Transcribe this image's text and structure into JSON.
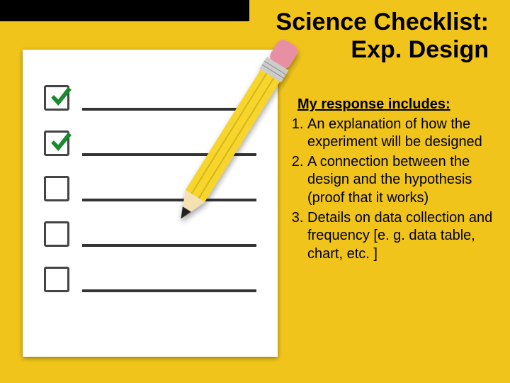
{
  "colors": {
    "background": "#f0c41b",
    "header_black": "#000000",
    "header_black_width": 352,
    "paper": "#ffffff",
    "line": "#333333",
    "checkbox_border": "#444444",
    "checkmark": "#178a2e",
    "pencil_body": "#f7d52a",
    "pencil_eraser": "#e98fa3",
    "pencil_ferrule": "#cccccc",
    "pencil_tip_wood": "#f4e0b0",
    "pencil_tip_lead": "#222222",
    "text": "#000000"
  },
  "title_line1": "Science Checklist:",
  "title_line2": "Exp. Design",
  "checklist": {
    "rows": [
      {
        "checked": true
      },
      {
        "checked": true
      },
      {
        "checked": false
      },
      {
        "checked": false
      },
      {
        "checked": false
      }
    ]
  },
  "content": {
    "heading": "My response includes:",
    "items": [
      "An explanation of how the experiment will be designed",
      "A connection between the design and the hypothesis (proof that it works)",
      "Details on data collection and frequency [e. g. data table, chart, etc. ]"
    ]
  }
}
